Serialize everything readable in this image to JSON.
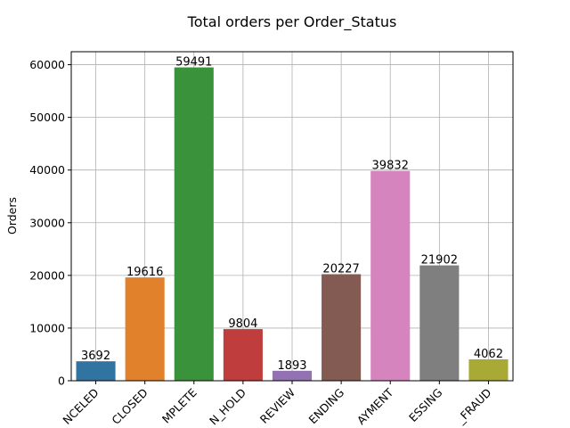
{
  "chart_data": {
    "type": "bar",
    "title": "Total orders per Order_Status",
    "xlabel": "",
    "ylabel": "Orders",
    "categories": [
      "NCELED",
      "CLOSED",
      "MPLETE",
      "N_HOLD",
      "REVIEW",
      "ENDING",
      "AYMENT",
      "ESSING",
      "_FRAUD"
    ],
    "values": [
      3692,
      19616,
      59491,
      9804,
      1893,
      20227,
      39832,
      21902,
      4062
    ],
    "colors": [
      "#3274a1",
      "#e1812c",
      "#3a923a",
      "#c03d3e",
      "#9372b2",
      "#845b53",
      "#d684bd",
      "#7f7f7f",
      "#a9aa35"
    ],
    "yticks": [
      0,
      10000,
      20000,
      30000,
      40000,
      50000,
      60000
    ],
    "ylim": [
      0,
      62466
    ],
    "grid": true,
    "legend": "none"
  }
}
